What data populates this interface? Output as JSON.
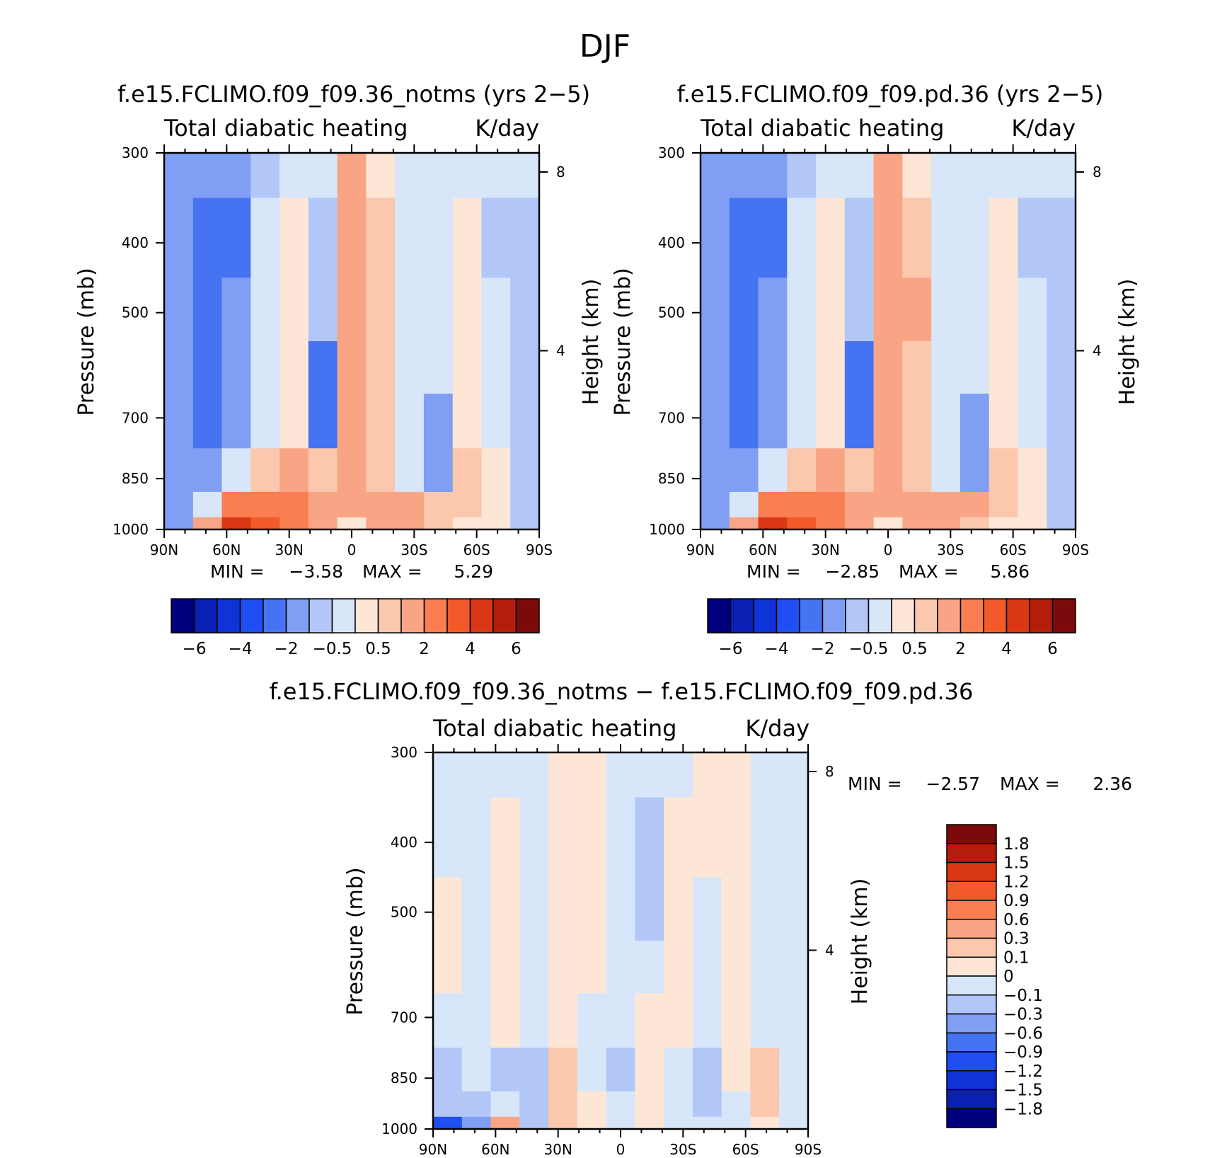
{
  "title": "DJF",
  "colors": {
    "scale": [
      "#00007f",
      "#0a20b2",
      "#0e34d8",
      "#1f4ff2",
      "#4673f2",
      "#7f9ef4",
      "#b2c7f7",
      "#d7e6f8",
      "#fde6d6",
      "#fbc8ad",
      "#f9a585",
      "#f97e52",
      "#f25a29",
      "#da3716",
      "#b31e0c",
      "#7d0a0a"
    ]
  },
  "panels": [
    {
      "title": "f.e15.FCLIMO.f09_f09.36_notms (yrs 2−5)",
      "left_label": "Total diabatic heating",
      "right_label": "K/day",
      "min_text": "MIN =",
      "min_value": "−3.58",
      "max_text": "MAX =",
      "max_value": "5.29"
    },
    {
      "title": "f.e15.FCLIMO.f09_f09.pd.36 (yrs 2−5)",
      "left_label": "Total diabatic heating",
      "right_label": "K/day",
      "min_text": "MIN =",
      "min_value": "−2.85",
      "max_text": "MAX =",
      "max_value": "5.86"
    },
    {
      "title": "f.e15.FCLIMO.f09_f09.36_notms − f.e15.FCLIMO.f09_f09.pd.36",
      "left_label": "Total diabatic heating",
      "right_label": "K/day",
      "min_text": "MIN =",
      "min_value": "−2.57",
      "max_text": "MAX =",
      "max_value": "2.36"
    }
  ],
  "axes": {
    "ylabel": "Pressure (mb)",
    "y2label": "Height (km)",
    "xticks": [
      "90N",
      "60N",
      "30N",
      "0",
      "30S",
      "60S",
      "90S"
    ],
    "yticks": [
      "300",
      "400",
      "500",
      "700",
      "850",
      "1000"
    ],
    "y2ticks": [
      "8",
      "4"
    ]
  },
  "colorbars": {
    "top_labels": [
      "−6",
      "−4",
      "−2",
      "−0.5",
      "0.5",
      "2",
      "4",
      "6"
    ],
    "diff_labels": [
      "1.8",
      "1.5",
      "1.2",
      "0.9",
      "0.6",
      "0.3",
      "0.1",
      "0",
      "−0.1",
      "−0.3",
      "−0.6",
      "−0.9",
      "−1.2",
      "−1.5",
      "−1.8"
    ]
  },
  "chart_data": [
    {
      "type": "heatmap",
      "title": "f.e15.FCLIMO.f09_f09.36_notms (yrs 2−5)",
      "subtitle_left": "Total diabatic heating",
      "subtitle_right": "K/day",
      "ylabel": "Pressure (mb)",
      "y2label": "Height (km)",
      "x_ticks": [
        "90N",
        "60N",
        "30N",
        "0",
        "30S",
        "60S",
        "90S"
      ],
      "y_ticks": [
        300,
        400,
        500,
        700,
        850,
        1000
      ],
      "y2_ticks": [
        8,
        4
      ],
      "x": [
        "90N",
        "75N",
        "60N",
        "45N",
        "30N",
        "15N",
        "0",
        "15S",
        "30S",
        "45S",
        "60S",
        "75S",
        "90S"
      ],
      "y": [
        300,
        400,
        500,
        600,
        700,
        850,
        925,
        1000
      ],
      "z": [
        [
          -1.5,
          -1.5,
          -1.5,
          -0.8,
          -0.3,
          -0.3,
          1.0,
          0.2,
          -0.3,
          -0.3,
          -0.3,
          -0.3,
          -0.3
        ],
        [
          -1.5,
          -2.2,
          -2.2,
          -0.3,
          0.3,
          -1.0,
          1.5,
          0.5,
          -0.3,
          -0.3,
          0.2,
          -0.8,
          -1.0
        ],
        [
          -1.5,
          -2.2,
          -1.5,
          -0.3,
          0.3,
          -1.0,
          1.5,
          0.8,
          -0.3,
          -0.3,
          0.3,
          -0.3,
          -1.0
        ],
        [
          -1.5,
          -2.2,
          -1.5,
          -0.3,
          0.3,
          -2.2,
          1.5,
          0.8,
          -0.3,
          -0.3,
          0.3,
          -0.3,
          -1.0
        ],
        [
          -1.5,
          -2.2,
          -1.5,
          -0.3,
          0.3,
          -2.2,
          1.5,
          0.5,
          -0.3,
          -1.5,
          0.3,
          -0.3,
          -1.0
        ],
        [
          -1.5,
          -1.5,
          -0.3,
          0.8,
          1.0,
          0.5,
          1.5,
          0.5,
          -0.3,
          -1.8,
          0.5,
          0.3,
          -1.0
        ],
        [
          -1.5,
          -0.3,
          2.5,
          2.5,
          2.5,
          1.0,
          1.5,
          1.5,
          1.5,
          0.8,
          0.8,
          0.3,
          -1.0
        ],
        [
          -2.0,
          1.0,
          4.0,
          3.0,
          2.5,
          1.0,
          0.3,
          1.5,
          1.5,
          0.8,
          0.3,
          0.2,
          -1.0
        ]
      ],
      "levels": [
        -6,
        -5,
        -4,
        -3,
        -2,
        -1,
        -0.5,
        0,
        0.5,
        1,
        2,
        3,
        4,
        5,
        6
      ],
      "colorbar_labels": [
        "−6",
        "−4",
        "−2",
        "−0.5",
        "0.5",
        "2",
        "4",
        "6"
      ],
      "min": -3.58,
      "max": 5.29
    },
    {
      "type": "heatmap",
      "title": "f.e15.FCLIMO.f09_f09.pd.36 (yrs 2−5)",
      "subtitle_left": "Total diabatic heating",
      "subtitle_right": "K/day",
      "ylabel": "Pressure (mb)",
      "y2label": "Height (km)",
      "x_ticks": [
        "90N",
        "60N",
        "30N",
        "0",
        "30S",
        "60S",
        "90S"
      ],
      "y_ticks": [
        300,
        400,
        500,
        700,
        850,
        1000
      ],
      "y2_ticks": [
        8,
        4
      ],
      "x": [
        "90N",
        "75N",
        "60N",
        "45N",
        "30N",
        "15N",
        "0",
        "15S",
        "30S",
        "45S",
        "60S",
        "75S",
        "90S"
      ],
      "y": [
        300,
        400,
        500,
        600,
        700,
        850,
        925,
        1000
      ],
      "z": [
        [
          -1.5,
          -1.5,
          -1.5,
          -0.8,
          -0.3,
          -0.3,
          1.0,
          0.3,
          -0.3,
          -0.3,
          -0.3,
          -0.3,
          -0.3
        ],
        [
          -1.5,
          -2.2,
          -2.2,
          -0.3,
          0.3,
          -1.0,
          1.5,
          0.8,
          -0.3,
          -0.3,
          0.2,
          -0.8,
          -1.0
        ],
        [
          -1.5,
          -2.2,
          -1.5,
          -0.3,
          0.3,
          -1.0,
          1.5,
          1.0,
          -0.3,
          -0.3,
          0.3,
          -0.3,
          -1.0
        ],
        [
          -1.5,
          -2.2,
          -1.5,
          -0.3,
          0.3,
          -2.2,
          1.5,
          0.8,
          -0.3,
          -0.3,
          0.3,
          -0.3,
          -1.0
        ],
        [
          -1.5,
          -2.2,
          -1.5,
          -0.3,
          0.3,
          -2.2,
          1.5,
          0.5,
          -0.3,
          -1.5,
          0.3,
          -0.3,
          -1.0
        ],
        [
          -1.5,
          -1.5,
          -0.3,
          0.8,
          1.0,
          0.5,
          1.5,
          0.5,
          -0.3,
          -1.8,
          0.5,
          0.3,
          -1.0
        ],
        [
          -1.5,
          -0.3,
          2.5,
          2.5,
          2.5,
          1.0,
          1.5,
          1.0,
          1.5,
          1.0,
          0.8,
          0.3,
          -1.0
        ],
        [
          -2.0,
          1.0,
          4.0,
          3.0,
          2.5,
          1.0,
          0.3,
          1.0,
          1.5,
          0.8,
          0.3,
          0.2,
          -1.0
        ]
      ],
      "levels": [
        -6,
        -5,
        -4,
        -3,
        -2,
        -1,
        -0.5,
        0,
        0.5,
        1,
        2,
        3,
        4,
        5,
        6
      ],
      "colorbar_labels": [
        "−6",
        "−4",
        "−2",
        "−0.5",
        "0.5",
        "2",
        "4",
        "6"
      ],
      "min": -2.85,
      "max": 5.86
    },
    {
      "type": "heatmap",
      "title": "f.e15.FCLIMO.f09_f09.36_notms − f.e15.FCLIMO.f09_f09.pd.36",
      "subtitle_left": "Total diabatic heating",
      "subtitle_right": "K/day",
      "ylabel": "Pressure (mb)",
      "y2label": "Height (km)",
      "x_ticks": [
        "90N",
        "60N",
        "30N",
        "0",
        "30S",
        "60S",
        "90S"
      ],
      "y_ticks": [
        300,
        400,
        500,
        700,
        850,
        1000
      ],
      "y2_ticks": [
        8,
        4
      ],
      "x": [
        "90N",
        "75N",
        "60N",
        "45N",
        "30N",
        "15N",
        "0",
        "15S",
        "30S",
        "45S",
        "60S",
        "75S",
        "90S"
      ],
      "y": [
        300,
        400,
        500,
        600,
        700,
        850,
        925,
        1000
      ],
      "z": [
        [
          -0.05,
          -0.05,
          -0.05,
          -0.05,
          0.05,
          0.05,
          -0.05,
          -0.05,
          -0.05,
          0.05,
          0.05,
          -0.05,
          -0.05
        ],
        [
          -0.05,
          -0.05,
          0.05,
          -0.05,
          0.05,
          0.05,
          -0.05,
          -0.2,
          0.05,
          0.05,
          0.05,
          -0.05,
          -0.05
        ],
        [
          0.05,
          -0.05,
          0.05,
          -0.05,
          0.05,
          0.05,
          -0.05,
          -0.2,
          0.05,
          -0.05,
          0.05,
          -0.05,
          -0.05
        ],
        [
          0.05,
          -0.05,
          0.05,
          -0.05,
          0.05,
          0.05,
          -0.05,
          -0.05,
          0.05,
          -0.05,
          0.05,
          -0.05,
          -0.05
        ],
        [
          -0.05,
          -0.05,
          0.05,
          -0.05,
          0.05,
          -0.05,
          -0.05,
          0.05,
          0.05,
          -0.05,
          0.05,
          -0.05,
          -0.05
        ],
        [
          -0.2,
          -0.05,
          -0.2,
          -0.2,
          0.2,
          -0.05,
          -0.2,
          0.05,
          -0.05,
          -0.2,
          0.05,
          0.2,
          -0.05
        ],
        [
          -0.2,
          -0.2,
          -0.05,
          -0.2,
          0.2,
          0.05,
          -0.05,
          0.05,
          -0.05,
          -0.2,
          -0.05,
          0.2,
          -0.05
        ],
        [
          -1.0,
          -0.5,
          0.5,
          -0.2,
          0.2,
          0.05,
          -0.05,
          0.05,
          -0.05,
          -0.05,
          -0.05,
          0.05,
          -0.05
        ]
      ],
      "levels": [
        -1.8,
        -1.5,
        -1.2,
        -0.9,
        -0.6,
        -0.3,
        -0.1,
        0,
        0.1,
        0.3,
        0.6,
        0.9,
        1.2,
        1.5,
        1.8
      ],
      "colorbar_labels": [
        "1.8",
        "1.5",
        "1.2",
        "0.9",
        "0.6",
        "0.3",
        "0.1",
        "0",
        "−0.1",
        "−0.3",
        "−0.6",
        "−0.9",
        "−1.2",
        "−1.5",
        "−1.8"
      ],
      "min": -2.57,
      "max": 2.36
    }
  ]
}
